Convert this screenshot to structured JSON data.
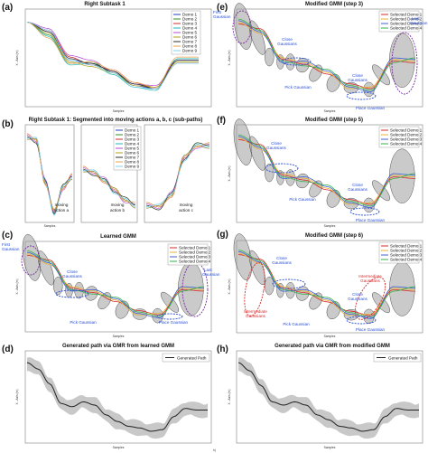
{
  "colors": {
    "demo": [
      "#1f3fbf",
      "#2f8f2f",
      "#d62a2a",
      "#1fb5b5",
      "#b14bd6",
      "#b3a11a",
      "#2c2c2c",
      "#e8a04a",
      "#7fd3f5"
    ],
    "selected": [
      "#d62a2a",
      "#e8b230",
      "#3c5fd6",
      "#33b34a"
    ],
    "gaussian": "#9e9e9e",
    "ann_blue": "#2a4fd6",
    "ann_red": "#d62a2a",
    "ann_purple": "#7a2ba0"
  },
  "panels": {
    "a": {
      "label": "(a)",
      "title": "Right Subtask 1",
      "xlabel": "Samples",
      "ylabel": "X - Axis (m)",
      "legend": [
        "Demo 1",
        "Demo 2",
        "Demo 3",
        "Demo 4",
        "Demo 5",
        "Demo 6",
        "Demo 7",
        "Demo 8",
        "Demo 9"
      ]
    },
    "b": {
      "label": "(b)",
      "title": "Right Subtask 1: Segmented into moving actions a, b, c (sub-paths)",
      "legend": [
        "Demo 1",
        "Demo 2",
        "Demo 3",
        "Demo 4",
        "Demo 5",
        "Demo 6",
        "Demo 7",
        "Demo 8",
        "Demo 9"
      ],
      "actions": [
        [
          "moving",
          "action a"
        ],
        [
          "moving",
          "action b"
        ],
        [
          "moving",
          "action c"
        ]
      ],
      "xlabel": "Samples"
    },
    "c": {
      "label": "(c)",
      "title": "Learned GMM",
      "xlabel": "Samples",
      "ylabel": "X - Axis (m)",
      "legend": [
        "Selected Demo 1",
        "Selected Demo 2",
        "Selected Demo 3",
        "Selected Demo 4"
      ],
      "ann": {
        "first": [
          "First",
          "Gaussian"
        ],
        "last": [
          "Last",
          "Gaussian"
        ],
        "close": [
          "Close",
          "Gaussians"
        ],
        "pick": "Pick Gaussian",
        "place": "Place Gaussian"
      }
    },
    "d": {
      "label": "(d)",
      "title": "Generated path via GMR from learned GMM",
      "xlabel": "Samples",
      "ylabel": "X - Axis (m)",
      "legend": "Generated Path"
    },
    "e": {
      "label": "(e)",
      "title": "Modified GMM (step 3)",
      "xlabel": "Samples",
      "ylabel": "X - Axis (m)",
      "legend": [
        "Selected Demo 1",
        "Selected Demo 2",
        "Selected Demo 3",
        "Selected Demo 4"
      ],
      "ann": {
        "first": [
          "First",
          "Gaussian"
        ],
        "last": [
          "Last",
          "Gaussian"
        ],
        "close": [
          "Close",
          "Gaussians"
        ],
        "pick": "Pick Gaussian",
        "place": "Place Gaussian"
      }
    },
    "f": {
      "label": "(f)",
      "title": "Modified GMM (step 5)",
      "xlabel": "Samples",
      "ylabel": "X - Axis (m)",
      "legend": [
        "Selected Demo 1",
        "Selected Demo 2",
        "Selected Demo 3",
        "Selected Demo 4"
      ],
      "ann": {
        "close": [
          "Close",
          "Gaussians"
        ],
        "pick": "Pick Gaussian",
        "place": "Place Gaussian"
      }
    },
    "g": {
      "label": "(g)",
      "title": "Modified GMM (step 6)",
      "xlabel": "Samples",
      "ylabel": "X - Axis (m)",
      "legend": [
        "Selected Demo 1",
        "Selected Demo 2",
        "Selected Demo 3",
        "Selected Demo 4"
      ],
      "ann": {
        "close": [
          "Close",
          "Gaussians"
        ],
        "intermediate1": [
          "Intermediate",
          "Gaussians"
        ],
        "intermediate2": [
          "Intermediate",
          "Gaussians"
        ],
        "pick": "Pick Gaussian",
        "place": "Place Gaussian"
      }
    },
    "h": {
      "label": "(h)",
      "title": "Generated path via GMR from modified GMM",
      "xlabel": "Samples",
      "ylabel": "X - Axis (m)",
      "legend": "Generated Path"
    },
    "footer": "h)"
  },
  "chart_data": [
    {
      "type": "line",
      "panel": "a",
      "title": "Right Subtask 1",
      "xlabel": "Samples",
      "ylabel": "X - Axis (m)",
      "x": [
        0,
        200,
        400,
        600,
        800,
        1000,
        1200,
        1400,
        1600
      ],
      "series": [
        {
          "name": "Demo 1",
          "values": [
            0.36,
            0.3,
            0.12,
            0.1,
            0.05,
            -0.04,
            -0.06,
            0.12,
            0.12
          ]
        },
        {
          "name": "Demo 2",
          "values": [
            0.36,
            0.28,
            0.1,
            0.11,
            0.04,
            -0.03,
            -0.05,
            0.11,
            0.11
          ]
        },
        {
          "name": "Demo 3",
          "values": [
            0.36,
            0.31,
            0.14,
            0.09,
            0.06,
            -0.02,
            -0.06,
            0.1,
            0.1
          ]
        },
        {
          "name": "Demo 4",
          "values": [
            0.36,
            0.27,
            0.09,
            0.1,
            0.03,
            -0.05,
            -0.07,
            0.13,
            0.13
          ]
        },
        {
          "name": "Demo 5",
          "values": [
            0.36,
            0.32,
            0.15,
            0.12,
            0.05,
            -0.03,
            -0.04,
            0.12,
            0.12
          ]
        },
        {
          "name": "Demo 6",
          "values": [
            0.36,
            0.29,
            0.11,
            0.08,
            0.04,
            -0.04,
            -0.05,
            0.11,
            0.11
          ]
        },
        {
          "name": "Demo 7",
          "values": [
            0.36,
            0.3,
            0.13,
            0.1,
            0.05,
            -0.03,
            -0.06,
            0.12,
            0.12
          ]
        },
        {
          "name": "Demo 8",
          "values": [
            0.36,
            0.26,
            0.1,
            0.11,
            0.06,
            -0.02,
            -0.05,
            0.14,
            0.14
          ]
        },
        {
          "name": "Demo 9",
          "values": [
            0.36,
            0.31,
            0.12,
            0.09,
            0.04,
            -0.05,
            -0.06,
            0.1,
            0.1
          ]
        }
      ]
    },
    {
      "type": "line",
      "panel": "d",
      "title": "Generated path via GMR from learned GMM",
      "legend": "Generated Path",
      "x": [
        0,
        100,
        200,
        300,
        400,
        500,
        600,
        700,
        800,
        900,
        1000,
        1100,
        1200,
        1300,
        1400,
        1500,
        1600
      ],
      "values": [
        0.35,
        0.31,
        0.22,
        0.1,
        0.08,
        0.11,
        0.09,
        0.03,
        -0.01,
        -0.04,
        -0.05,
        -0.07,
        -0.06,
        0.02,
        0.07,
        0.06,
        0.06
      ]
    },
    {
      "type": "line",
      "panel": "h",
      "title": "Generated path via GMR from modified GMM",
      "legend": "Generated Path",
      "x": [
        0,
        100,
        200,
        300,
        400,
        500,
        600,
        700,
        800,
        900,
        1000,
        1100,
        1200,
        1300,
        1400,
        1500,
        1600
      ],
      "values": [
        0.35,
        0.3,
        0.21,
        0.11,
        0.09,
        0.11,
        0.09,
        0.03,
        0.0,
        -0.04,
        -0.05,
        -0.07,
        -0.06,
        0.02,
        0.07,
        0.06,
        0.06
      ]
    }
  ]
}
